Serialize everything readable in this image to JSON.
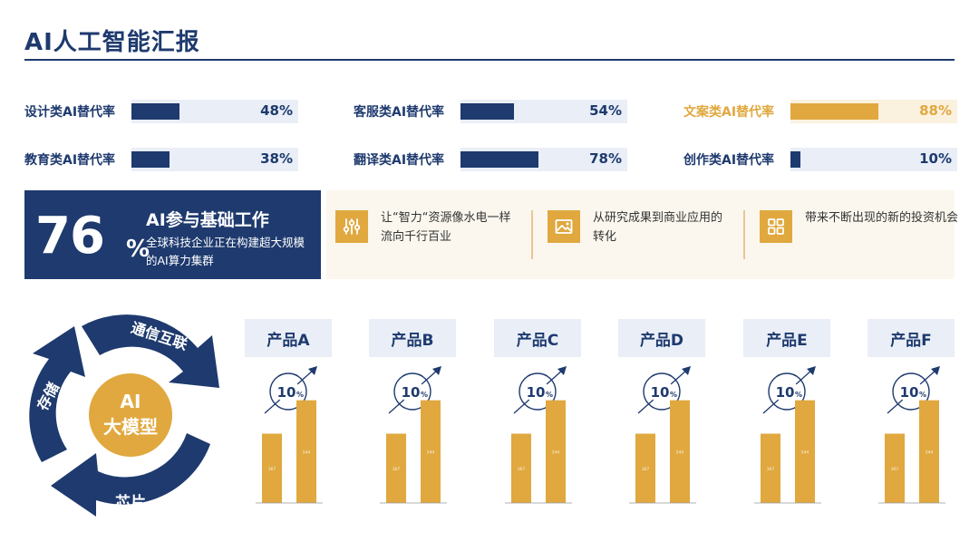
{
  "header": {
    "title": "AI人工智能汇报"
  },
  "rates": [
    {
      "label": "设计类AI替代率",
      "value": "48%",
      "fraction": 0.48,
      "highlight": false
    },
    {
      "label": "客服类AI替代率",
      "value": "54%",
      "fraction": 0.54,
      "highlight": false
    },
    {
      "label": "文案类AI替代率",
      "value": "88%",
      "fraction": 0.88,
      "highlight": true
    },
    {
      "label": "教育类AI替代率",
      "value": "38%",
      "fraction": 0.38,
      "highlight": false
    },
    {
      "label": "翻译类AI替代率",
      "value": "78%",
      "fraction": 0.78,
      "highlight": false
    },
    {
      "label": "创作类AI替代率",
      "value": "10%",
      "fraction": 0.1,
      "highlight": false
    }
  ],
  "stat": {
    "number": "76",
    "unit": "%",
    "title": "AI参与基础工作",
    "description": "全球科技企业正在构建超大规模的AI算力集群"
  },
  "features": [
    {
      "icon": "sliders-icon",
      "text": "让“智力“资源像水电一样流向千行百业"
    },
    {
      "icon": "image-icon",
      "text": "从研究成果到商业应用的转化"
    },
    {
      "icon": "grid-icon",
      "text": "带来不断出现的新的投资机会"
    }
  ],
  "cycle": {
    "center": [
      "AI",
      "大模型"
    ],
    "segments": [
      "通信互联",
      "芯片",
      "存储"
    ]
  },
  "products": [
    {
      "name": "产品A",
      "growth": "10",
      "growth_unit": "%"
    },
    {
      "name": "产品B",
      "growth": "10",
      "growth_unit": "%"
    },
    {
      "name": "产品C",
      "growth": "10",
      "growth_unit": "%"
    },
    {
      "name": "产品D",
      "growth": "10",
      "growth_unit": "%"
    },
    {
      "name": "产品E",
      "growth": "10",
      "growth_unit": "%"
    },
    {
      "name": "产品F",
      "growth": "10",
      "growth_unit": "%"
    }
  ],
  "chart_data": {
    "type": "bar",
    "categories": [
      "20XX",
      "20XX"
    ],
    "values": [
      367,
      544
    ],
    "value_labels": [
      "367",
      "544"
    ],
    "note": "same two-bar chart repeated under each product card"
  },
  "colors": {
    "navy": "#1e3a6e",
    "gold": "#e0a83e",
    "light_blue": "#e9eef7",
    "cream": "#fbf7ee"
  }
}
